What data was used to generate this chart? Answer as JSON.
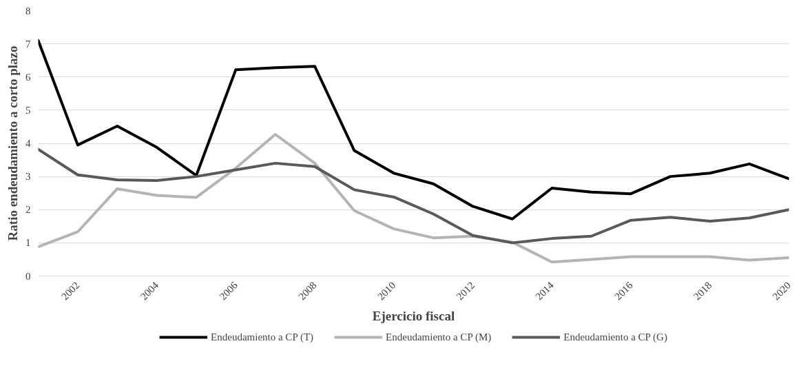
{
  "chart_data": {
    "type": "line",
    "xlabel": "Ejercicio fiscal",
    "ylabel": "Ratio endeudamiento a corto plazo",
    "x": [
      2001,
      2002,
      2003,
      2004,
      2005,
      2006,
      2007,
      2008,
      2009,
      2010,
      2011,
      2012,
      2013,
      2014,
      2015,
      2016,
      2017,
      2018,
      2019,
      2020
    ],
    "series": [
      {
        "name": "Endeudamiento a CP (T)",
        "color": "#000000",
        "values": [
          7.1,
          3.95,
          4.52,
          3.88,
          3.03,
          6.22,
          6.28,
          6.32,
          3.78,
          3.1,
          2.78,
          2.1,
          1.72,
          2.65,
          2.53,
          2.48,
          3.0,
          3.1,
          3.38,
          2.93
        ]
      },
      {
        "name": "Endeudamiento a CP (M)",
        "color": "#b4b4b4",
        "values": [
          0.88,
          1.33,
          2.63,
          2.43,
          2.37,
          3.25,
          4.27,
          3.4,
          1.97,
          1.42,
          1.15,
          1.2,
          1.02,
          0.42,
          0.5,
          0.58,
          0.58,
          0.58,
          0.48,
          0.55
        ]
      },
      {
        "name": "Endeudamiento a CP (G)",
        "color": "#595959",
        "values": [
          3.82,
          3.05,
          2.9,
          2.88,
          3.0,
          3.2,
          3.4,
          3.3,
          2.6,
          2.38,
          1.87,
          1.22,
          1.0,
          1.13,
          1.2,
          1.68,
          1.77,
          1.65,
          1.75,
          2.0
        ]
      }
    ],
    "xlim": [
      2001,
      2020
    ],
    "xticks": [
      2002,
      2004,
      2006,
      2008,
      2010,
      2012,
      2014,
      2016,
      2018,
      2020
    ],
    "ylim": [
      0,
      8
    ],
    "yticks": [
      0,
      1,
      2,
      3,
      4,
      5,
      6,
      7,
      8
    ],
    "grid": "y",
    "legend": "bottom",
    "marker": "none",
    "line_style": "solid"
  }
}
